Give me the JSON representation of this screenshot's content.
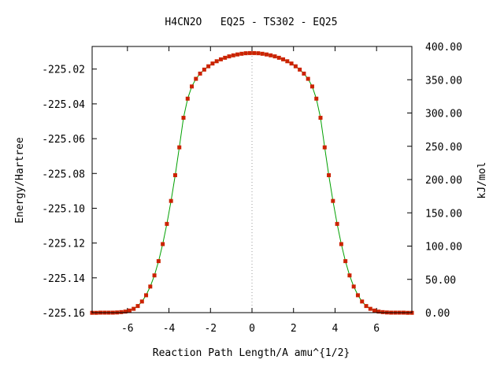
{
  "chart_data": {
    "type": "line",
    "title": "H4CN2O   EQ25 - TS302 - EQ25",
    "xlabel": "Reaction Path Length/A amu^{1/2}",
    "ylabel": "Energy/Hartree",
    "y2label": "kJ/mol",
    "xlim": [
      -7.7,
      7.7
    ],
    "ylim": [
      -225.16,
      -225.007
    ],
    "y2lim": [
      0,
      400
    ],
    "xticks": [
      -6,
      -4,
      -2,
      0,
      2,
      4,
      6
    ],
    "xtick_labels": [
      "-6",
      "-4",
      "-2",
      "0",
      "2",
      "4",
      "6"
    ],
    "yticks": [
      -225.02,
      -225.04,
      -225.06,
      -225.08,
      -225.1,
      -225.12,
      -225.14,
      -225.16
    ],
    "ytick_labels": [
      "-225.02",
      "-225.04",
      "-225.06",
      "-225.08",
      "-225.10",
      "-225.12",
      "-225.14",
      "-225.16"
    ],
    "y2ticks": [
      0,
      50,
      100,
      150,
      200,
      250,
      300,
      350,
      400
    ],
    "y2tick_labels": [
      "0.00",
      "50.00",
      "100.00",
      "150.00",
      "200.00",
      "250.00",
      "300.00",
      "350.00",
      "400.00"
    ],
    "ts_marker_x": 0,
    "line_color": "#00a000",
    "marker_color": "#cc2200",
    "grid": false,
    "series": [
      {
        "x": [
          -7.7,
          -7.5,
          -7.3,
          -7.1,
          -6.9,
          -6.7,
          -6.5,
          -6.3,
          -6.1,
          -5.9,
          -5.7,
          -5.5,
          -5.3,
          -5.1,
          -4.9,
          -4.7,
          -4.5,
          -4.3,
          -4.1,
          -3.9,
          -3.7,
          -3.5,
          -3.3,
          -3.1,
          -2.9,
          -2.7,
          -2.5,
          -2.3,
          -2.1,
          -1.9,
          -1.7,
          -1.5,
          -1.3,
          -1.1,
          -0.9,
          -0.7,
          -0.5,
          -0.3,
          -0.1,
          0.1,
          0.3,
          0.5,
          0.7,
          0.9,
          1.1,
          1.3,
          1.5,
          1.7,
          1.9,
          2.1,
          2.3,
          2.5,
          2.7,
          2.9,
          3.1,
          3.3,
          3.5,
          3.7,
          3.9,
          4.1,
          4.3,
          4.5,
          4.7,
          4.9,
          5.1,
          5.3,
          5.5,
          5.7,
          5.9,
          6.1,
          6.3,
          6.5,
          6.7,
          6.9,
          7.1,
          7.3,
          7.5,
          7.7
        ],
        "y": [
          -225.1601,
          -225.1601,
          -225.16,
          -225.16,
          -225.16,
          -225.16,
          -225.1599,
          -225.1597,
          -225.1594,
          -225.1588,
          -225.1578,
          -225.1562,
          -225.1536,
          -225.15,
          -225.145,
          -225.1386,
          -225.1304,
          -225.1206,
          -225.109,
          -225.0958,
          -225.081,
          -225.065,
          -225.048,
          -225.037,
          -225.03,
          -225.0256,
          -225.0226,
          -225.0203,
          -225.0184,
          -225.0168,
          -225.0155,
          -225.0144,
          -225.0135,
          -225.0127,
          -225.0121,
          -225.0116,
          -225.0112,
          -225.0109,
          -225.0108,
          -225.0108,
          -225.0109,
          -225.0112,
          -225.0116,
          -225.0121,
          -225.0127,
          -225.0135,
          -225.0144,
          -225.0155,
          -225.0168,
          -225.0184,
          -225.0203,
          -225.0226,
          -225.0256,
          -225.03,
          -225.037,
          -225.048,
          -225.065,
          -225.081,
          -225.0958,
          -225.109,
          -225.1206,
          -225.1304,
          -225.1386,
          -225.145,
          -225.15,
          -225.1536,
          -225.1562,
          -225.1578,
          -225.1588,
          -225.1594,
          -225.1597,
          -225.1599,
          -225.16,
          -225.16,
          -225.16,
          -225.16,
          -225.1601,
          -225.1601
        ]
      }
    ]
  }
}
